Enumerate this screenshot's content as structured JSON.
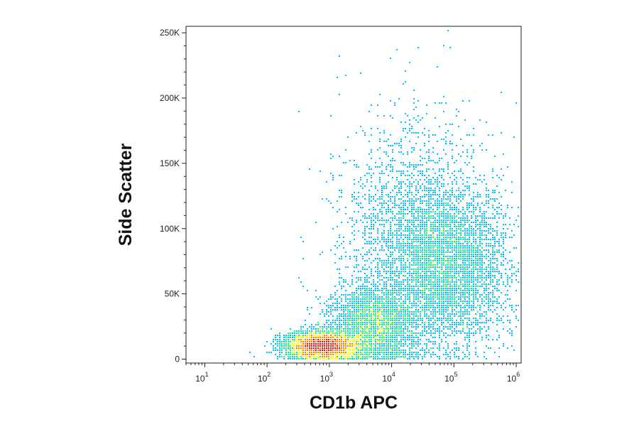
{
  "chart_data": {
    "type": "scatter",
    "title": "",
    "xlabel": "CD1b APC",
    "ylabel": "Side Scatter",
    "x_scale": "log",
    "xlim": [
      5,
      1200000
    ],
    "ylim": [
      -3000,
      255000
    ],
    "x_ticks": [
      {
        "value": 10,
        "base": "10",
        "exp": "1"
      },
      {
        "value": 100,
        "base": "10",
        "exp": "2"
      },
      {
        "value": 1000,
        "base": "10",
        "exp": "3"
      },
      {
        "value": 10000,
        "base": "10",
        "exp": "4"
      },
      {
        "value": 100000,
        "base": "10",
        "exp": "5"
      },
      {
        "value": 1000000,
        "base": "10",
        "exp": "6"
      }
    ],
    "y_ticks": [
      {
        "value": 0,
        "label": "0"
      },
      {
        "value": 50000,
        "label": "50K"
      },
      {
        "value": 100000,
        "label": "100K"
      },
      {
        "value": 150000,
        "label": "150K"
      },
      {
        "value": 200000,
        "label": "200K"
      },
      {
        "value": 250000,
        "label": "250K"
      }
    ],
    "populations": [
      {
        "center_x": 800,
        "center_y": 10000,
        "spread_log_x": 0.28,
        "spread_y": 5000,
        "relative_density": 1.0
      },
      {
        "center_x": 5000,
        "center_y": 25000,
        "spread_log_x": 0.35,
        "spread_y": 15000,
        "relative_density": 0.45
      },
      {
        "center_x": 80000,
        "center_y": 70000,
        "spread_log_x": 0.5,
        "spread_y": 30000,
        "relative_density": 0.6
      },
      {
        "center_x": 20000,
        "center_y": 95000,
        "spread_log_x": 0.6,
        "spread_y": 45000,
        "relative_density": 0.3
      }
    ],
    "density_colormap": [
      "#0000ff",
      "#00c0ff",
      "#00ff80",
      "#ffff00",
      "#ff8000",
      "#ff0000"
    ],
    "grid": false,
    "legend": "none"
  }
}
